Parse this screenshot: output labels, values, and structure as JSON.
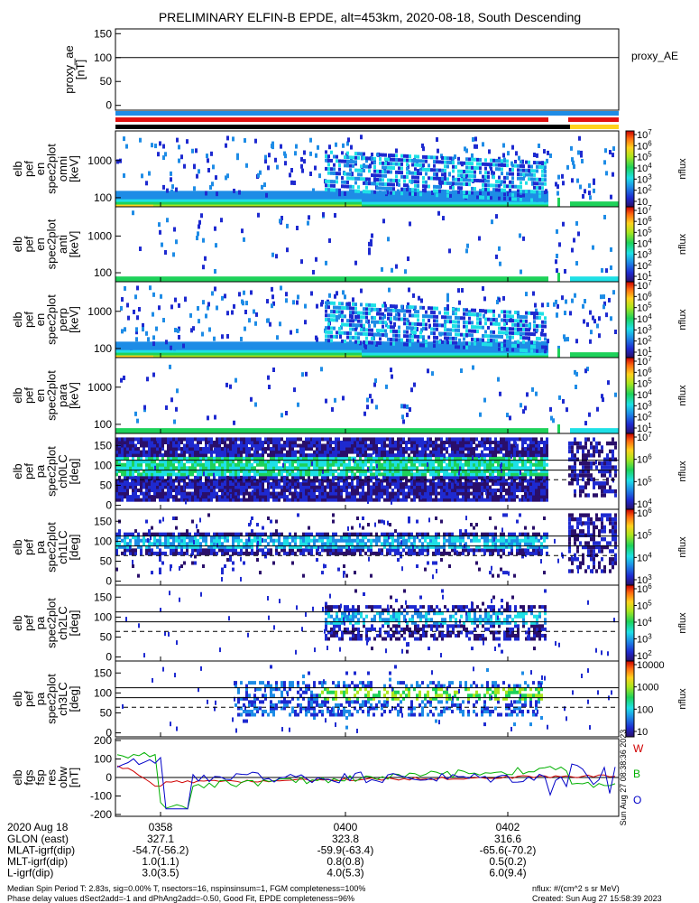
{
  "title": "PRELIMINARY ELFIN-B EPDE, alt=453km, 2020-08-18, South Descending",
  "chart_data": [
    {
      "type": "line",
      "id": "proxy_ae",
      "ylabel": [
        "proxy_ae",
        "[nT]"
      ],
      "legend": "proxy_AE",
      "ylim": [
        -10,
        160
      ],
      "yticks": [
        0,
        50,
        100,
        150
      ],
      "y_reference": 100
    },
    {
      "type": "heatmap",
      "id": "pef_en_omni",
      "ylabel": [
        "elb",
        "pef",
        "en",
        "spec2plot",
        "omni",
        "[keV]"
      ],
      "yticks": [
        "100",
        "1000"
      ],
      "colorbar_label": "nflux",
      "colorbar_ticks": [
        "10",
        "10^2",
        "10^3",
        "10^4",
        "10^5",
        "10^6",
        "10^7"
      ]
    },
    {
      "type": "heatmap",
      "id": "pef_en_anti",
      "ylabel": [
        "elb",
        "pef",
        "en",
        "spec2plot",
        "anti",
        "[keV]"
      ],
      "yticks": [
        "100",
        "1000"
      ],
      "colorbar_label": "nflux",
      "colorbar_ticks": [
        "10^1",
        "10^2",
        "10^3",
        "10^4",
        "10^5",
        "10^6",
        "10^7"
      ]
    },
    {
      "type": "heatmap",
      "id": "pef_en_perp",
      "ylabel": [
        "elb",
        "pef",
        "en",
        "spec2plot",
        "perp",
        "[keV]"
      ],
      "yticks": [
        "100",
        "1000"
      ],
      "colorbar_label": "nflux",
      "colorbar_ticks": [
        "10^1",
        "10^2",
        "10^3",
        "10^4",
        "10^5",
        "10^6",
        "10^7"
      ]
    },
    {
      "type": "heatmap",
      "id": "pef_en_para",
      "ylabel": [
        "elb",
        "pef",
        "en",
        "spec2plot",
        "para",
        "[keV]"
      ],
      "yticks": [
        "100",
        "1000"
      ],
      "colorbar_label": "nflux",
      "colorbar_ticks": [
        "10^1",
        "10^2",
        "10^3",
        "10^4",
        "10^5",
        "10^6",
        "10^7"
      ]
    },
    {
      "type": "heatmap",
      "id": "pef_pa_ch0",
      "ylabel": [
        "elb",
        "pef",
        "pa",
        "spec2plot",
        "ch0LC",
        "[deg]"
      ],
      "yticks": [
        "0",
        "50",
        "100",
        "150"
      ],
      "colorbar_label": "nflux",
      "colorbar_ticks": [
        "10^4",
        "10^5",
        "10^6",
        "10^7"
      ]
    },
    {
      "type": "heatmap",
      "id": "pef_pa_ch1",
      "ylabel": [
        "elb",
        "pef",
        "pa",
        "spec2plot",
        "ch1LC",
        "[deg]"
      ],
      "yticks": [
        "0",
        "50",
        "100",
        "150"
      ],
      "colorbar_label": "nflux",
      "colorbar_ticks": [
        "10^3",
        "10^4",
        "10^5",
        "10^6"
      ]
    },
    {
      "type": "heatmap",
      "id": "pef_pa_ch2",
      "ylabel": [
        "elb",
        "pef",
        "pa",
        "spec2plot",
        "ch2LC",
        "[deg]"
      ],
      "yticks": [
        "0",
        "50",
        "100",
        "150"
      ],
      "colorbar_label": "nflux",
      "colorbar_ticks": [
        "10^2",
        "10^3",
        "10^4",
        "10^5",
        "10^6"
      ]
    },
    {
      "type": "heatmap",
      "id": "pef_pa_ch3",
      "ylabel": [
        "elb",
        "pef",
        "pa",
        "spec2plot",
        "ch3LC",
        "[deg]"
      ],
      "yticks": [
        "0",
        "50",
        "100",
        "150"
      ],
      "colorbar_label": "nflux",
      "colorbar_ticks": [
        "10",
        "100",
        "1000",
        "10000"
      ]
    },
    {
      "type": "line",
      "id": "fgs_res",
      "ylabel": [
        "elb",
        "fgs",
        "fsp",
        "res",
        "obw",
        "[nT]"
      ],
      "ylim": [
        -210,
        210
      ],
      "yticks": [
        -200,
        -100,
        0,
        100,
        200
      ],
      "legend": [
        "W",
        "B",
        "O"
      ],
      "legend_colors": [
        "#d00000",
        "#00b000",
        "#0000c8"
      ],
      "stamp": "Sun Aug 27 08:38:36 2023"
    }
  ],
  "time_axis": {
    "date": "2020 Aug 18",
    "ticks": [
      "0358",
      "0400",
      "0402"
    ]
  },
  "ephemeris": [
    {
      "label": "GLON (east)",
      "values": [
        "327.1",
        "323.8",
        "316.6"
      ]
    },
    {
      "label": "MLAT-igrf(dip)",
      "values": [
        "-54.7(-56.2)",
        "-59.9(-63.4)",
        "-65.6(-70.2)"
      ]
    },
    {
      "label": "MLT-igrf(dip)",
      "values": [
        "1.0(1.1)",
        "0.8(0.8)",
        "0.5(0.2)"
      ]
    },
    {
      "label": "L-igrf(dip)",
      "values": [
        "3.0(3.5)",
        "4.0(5.3)",
        "6.0(9.4)"
      ]
    }
  ],
  "footer": {
    "line1": "Median Spin Period T: 2.83s, sig=0.00% T, nsectors=16, nspinsinsum=1, FGM completeness=100%",
    "line2": "Phase delay values dSect2add=-1 and dPhAng2add=-0.50, Good Fit, EPDE completeness=96%",
    "units": "nflux: #/(cm^2 s sr MeV)",
    "created": "Created: Sun Aug 27 15:58:39 2023"
  },
  "colors": {
    "bar_blue": "#1e8ce6",
    "bar_red": "#e01010",
    "bar_black": "#000000",
    "bar_yellow": "#ffd21e",
    "series_w": "#d00000",
    "series_b": "#00b000",
    "series_o": "#0000c8"
  }
}
